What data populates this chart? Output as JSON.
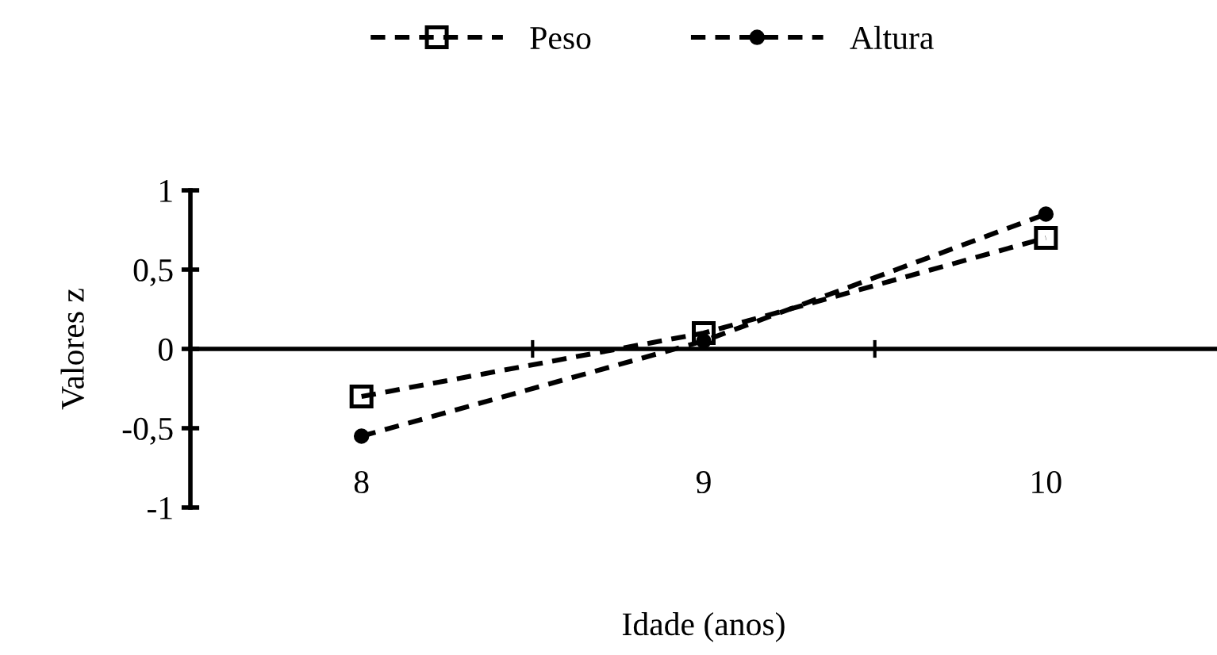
{
  "chart_data": {
    "type": "line",
    "xlabel": "Idade (anos)",
    "ylabel": "Valores z",
    "categories": [
      "8",
      "9",
      "10"
    ],
    "series": [
      {
        "name": "Peso",
        "color": "#000000",
        "marker": "square",
        "values": [
          -0.3,
          0.1,
          0.7
        ]
      },
      {
        "name": "Altura",
        "color": "#000000",
        "marker": "circle",
        "values": [
          -0.55,
          0.05,
          0.85
        ]
      }
    ],
    "ylim": [
      -1,
      1
    ],
    "yticks": [
      -1,
      {
        "value": -0.5,
        "label": "-0,5"
      },
      0,
      {
        "value": 0.5,
        "label": "0,5"
      },
      1
    ],
    "line_style": "dashed",
    "legend": "top"
  }
}
